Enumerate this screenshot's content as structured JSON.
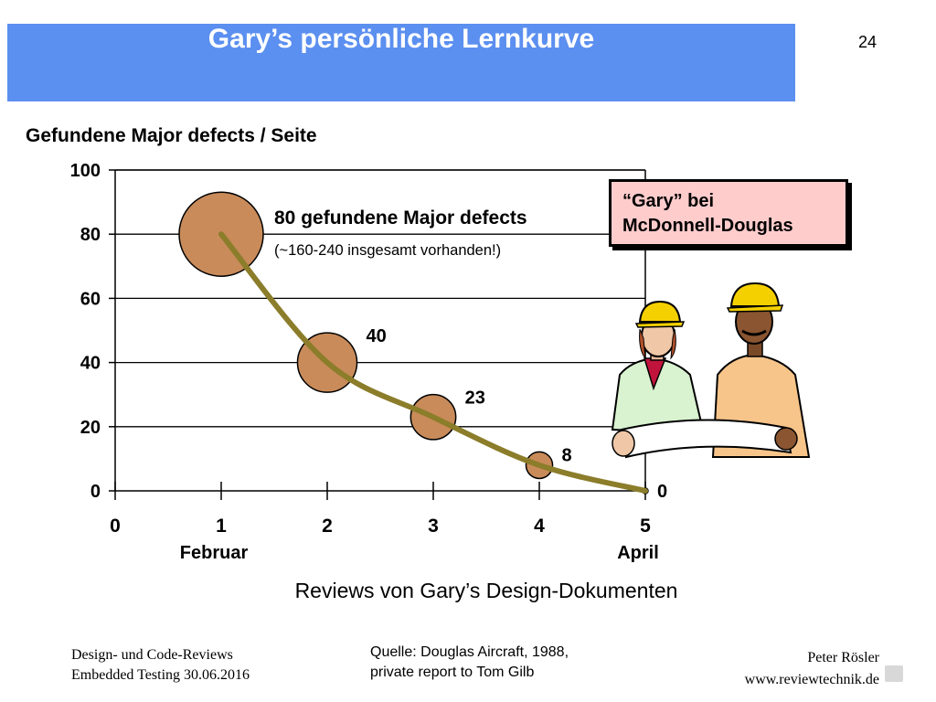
{
  "page_number": "24",
  "slide_title": "Gary’s persönliche Lernkurve",
  "callout_lines": [
    "“Gary” bei",
    "McDonnell-Douglas"
  ],
  "annotation_main": "80 gefundene Major defects",
  "annotation_sub": "(~160-240 insgesamt vorhanden!)",
  "month_labels": [
    {
      "label": "Februar",
      "x": 1
    },
    {
      "label": "April",
      "x": 5
    }
  ],
  "footer": {
    "left": [
      "Design- und Code-Reviews",
      "Embedded Testing 30.06.2016"
    ],
    "source": [
      "Quelle: Douglas Aircraft, 1988,",
      "private report to Tom Gilb"
    ],
    "author": [
      "Peter Rösler",
      "www.reviewtechnik.de"
    ]
  },
  "colors": {
    "title_bar": "#5b8ff0",
    "bubble": "#c98b5a",
    "curve": "#8b7d2a",
    "callout_bg": "#ffcccc"
  },
  "icons": [
    "construction-workers-illustration",
    "reviewtechnik-logo-icon"
  ],
  "chart_data": {
    "type": "scatter",
    "title": "Gefundene Major defects / Seite",
    "xlabel": "Reviews von Gary’s Design-Dokumenten",
    "ylabel": "",
    "xlim": [
      0,
      5
    ],
    "ylim": [
      0,
      100
    ],
    "x_ticks": [
      0,
      1,
      2,
      3,
      4,
      5
    ],
    "y_ticks": [
      0,
      20,
      40,
      60,
      80,
      100
    ],
    "grid": true,
    "series": [
      {
        "x": [
          1,
          2,
          3,
          4,
          5
        ],
        "values": [
          80,
          40,
          23,
          8,
          0
        ]
      }
    ],
    "data_labels": [
      "",
      "40",
      "23",
      "8",
      "0"
    ],
    "curve": "smoothed line through points, bubble size proportional to value"
  }
}
